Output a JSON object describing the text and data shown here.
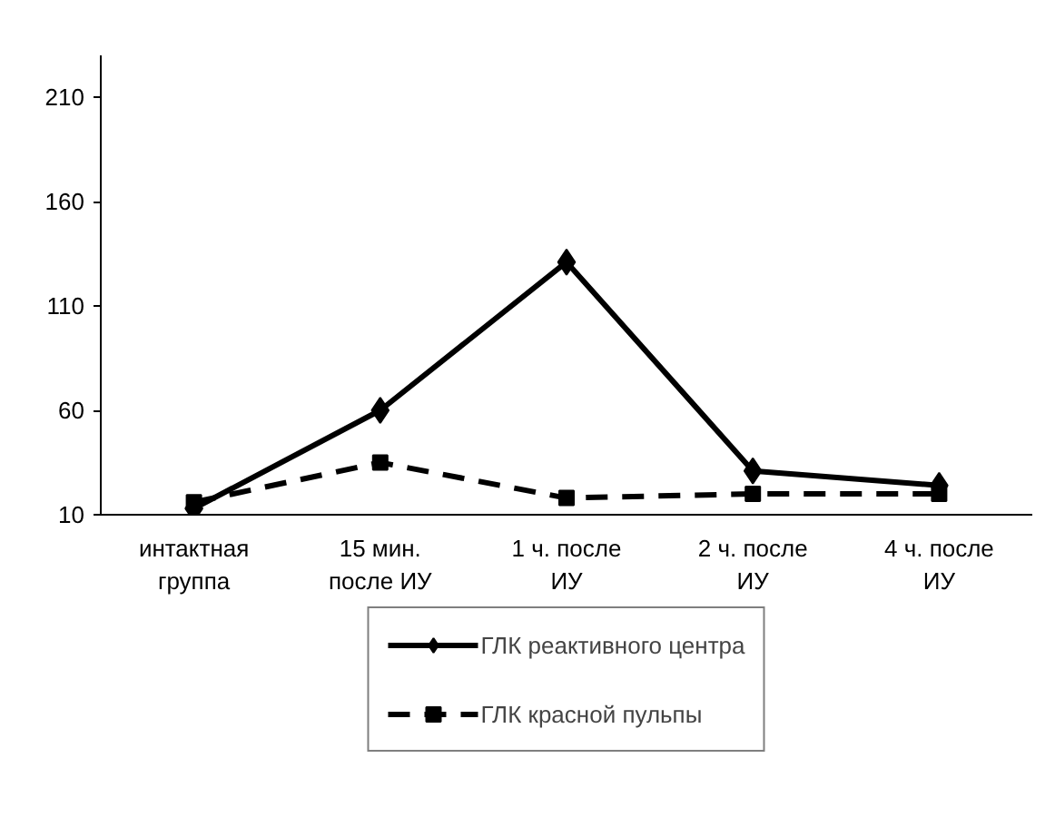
{
  "chart_data": {
    "type": "line",
    "categories": [
      "интактная\nгруппа",
      "15 мин.\nпосле ИУ",
      "1 ч. после\nИУ",
      "2 ч. после\nИУ",
      "4 ч. после\nИУ"
    ],
    "series": [
      {
        "name": "ГЛК реактивного центра",
        "color": "#000000",
        "marker": "diamond",
        "line_style": "solid",
        "values": [
          13,
          60,
          131,
          31,
          24
        ]
      },
      {
        "name": "ГЛК красной пульпы",
        "color": "#000000",
        "marker": "square",
        "line_style": "dashed",
        "values": [
          16,
          35,
          18,
          20,
          20
        ]
      }
    ],
    "ylim": [
      10,
      230
    ],
    "yticks": [
      10,
      60,
      110,
      160,
      210
    ],
    "grid": false,
    "legend": "bottom"
  }
}
